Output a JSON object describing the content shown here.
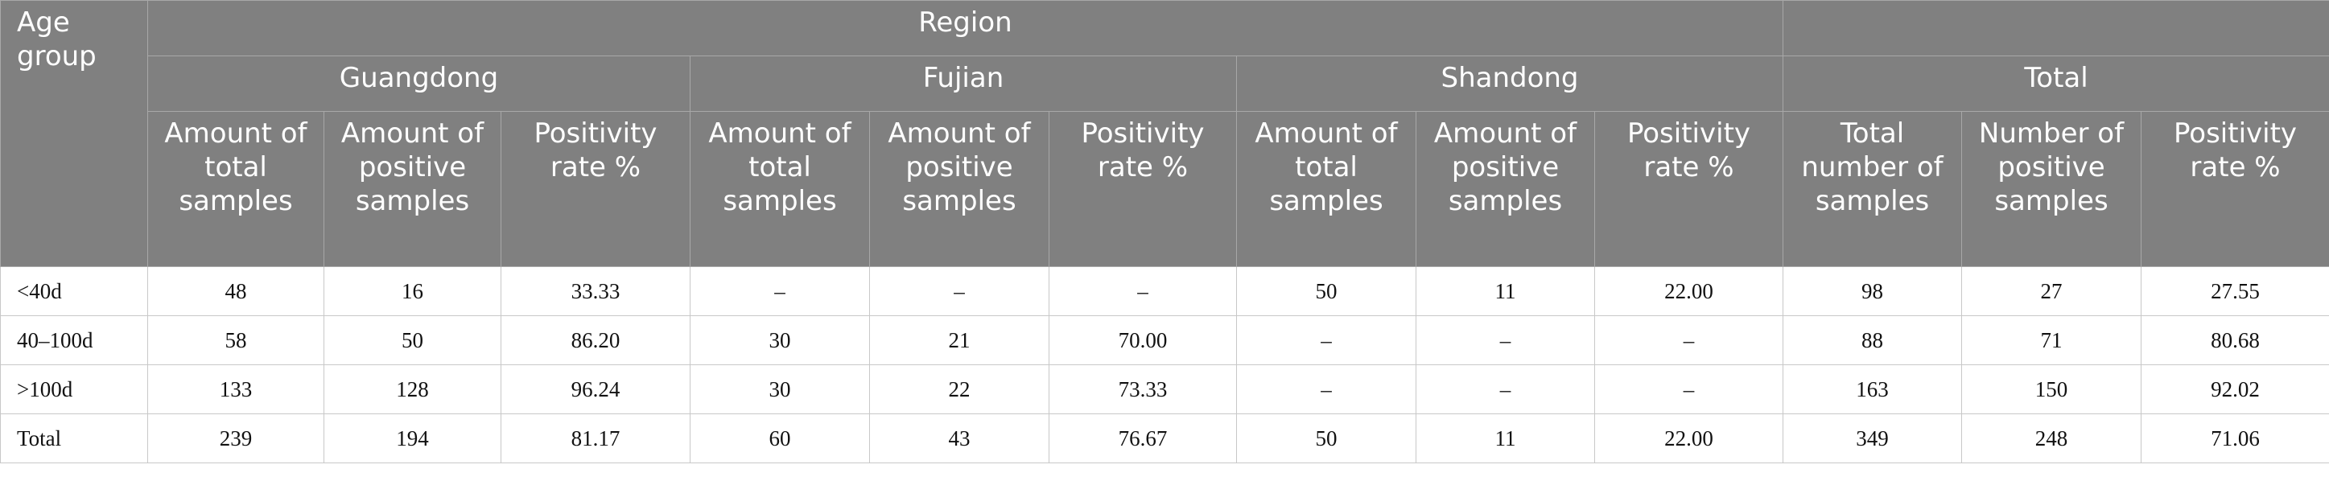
{
  "header": {
    "age_group": "Age group",
    "region": "Region",
    "groups": [
      "Guangdong",
      "Fujian",
      "Shandong",
      "Total"
    ],
    "columns": [
      "Amount of total samples",
      "Amount of positive samples",
      "Positivity rate %",
      "Amount of total samples",
      "Amount of positive samples",
      "Positivity rate %",
      "Amount of total samples",
      "Amount of positive samples",
      "Positivity rate %",
      "Total number of samples",
      "Number of positive samples",
      "Positivity rate %"
    ]
  },
  "rows": [
    [
      "<40d",
      "48",
      "16",
      "33.33",
      "–",
      "–",
      "–",
      "50",
      "11",
      "22.00",
      "98",
      "27",
      "27.55"
    ],
    [
      "40–100d",
      "58",
      "50",
      "86.20",
      "30",
      "21",
      "70.00",
      "–",
      "–",
      "–",
      "88",
      "71",
      "80.68"
    ],
    [
      ">100d",
      "133",
      "128",
      "96.24",
      "30",
      "22",
      "73.33",
      "–",
      "–",
      "–",
      "163",
      "150",
      "92.02"
    ],
    [
      "Total",
      "239",
      "194",
      "81.17",
      "60",
      "43",
      "76.67",
      "50",
      "11",
      "22.00",
      "349",
      "248",
      "71.06"
    ]
  ]
}
